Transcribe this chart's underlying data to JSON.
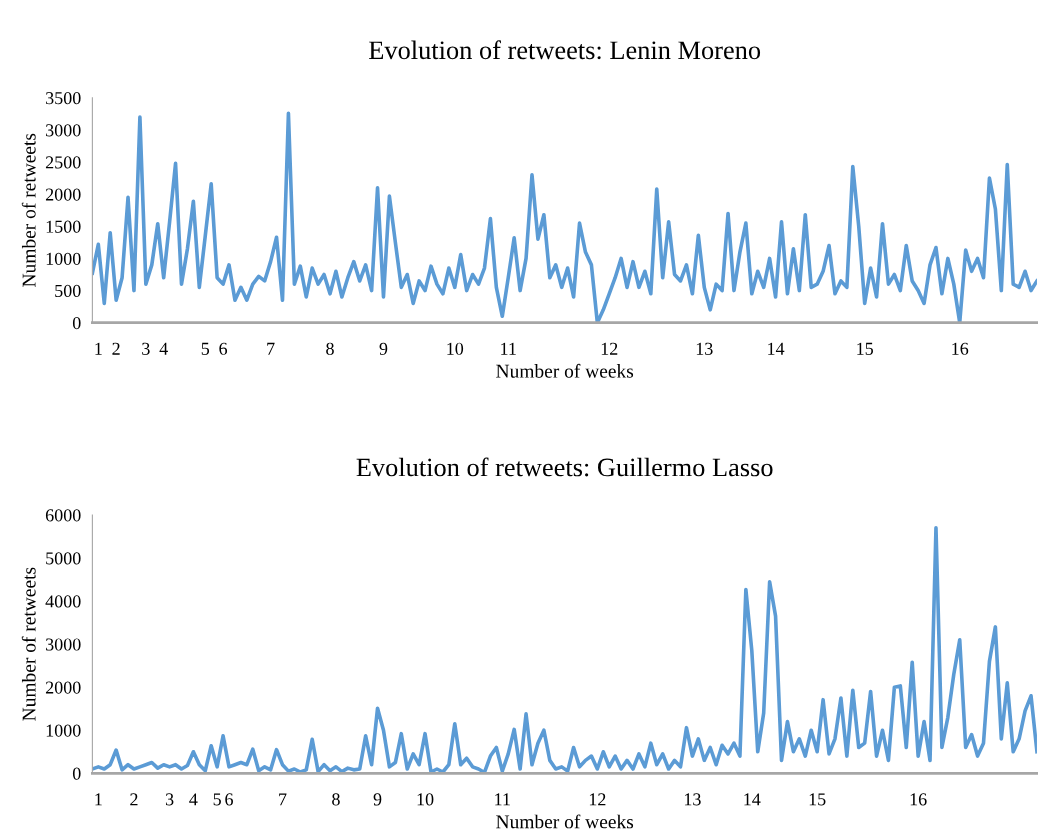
{
  "chart_data": [
    {
      "type": "line",
      "title": "Evolution of retweets: Lenin Moreno",
      "xlabel": "Number of weeks",
      "ylabel": "Number of retweets",
      "ylim": [
        0,
        3500
      ],
      "yticks": [
        0,
        500,
        1000,
        1500,
        2000,
        2500,
        3000,
        3500
      ],
      "grid": false,
      "legend": false,
      "marker": "none",
      "line_style": "solid",
      "categories": [
        null,
        "1",
        null,
        null,
        "2",
        null,
        null,
        null,
        null,
        "3",
        null,
        null,
        "4",
        null,
        null,
        null,
        null,
        null,
        null,
        "5",
        null,
        null,
        "6",
        null,
        null,
        null,
        null,
        null,
        null,
        null,
        "7",
        null,
        null,
        null,
        null,
        null,
        null,
        null,
        null,
        null,
        "8",
        null,
        null,
        null,
        null,
        null,
        null,
        null,
        null,
        "9",
        null,
        null,
        null,
        null,
        null,
        null,
        null,
        null,
        null,
        null,
        null,
        "10",
        null,
        null,
        null,
        null,
        null,
        null,
        null,
        null,
        "11",
        null,
        null,
        null,
        null,
        null,
        null,
        null,
        null,
        null,
        null,
        null,
        null,
        null,
        null,
        null,
        null,
        "12",
        null,
        null,
        null,
        null,
        null,
        null,
        null,
        null,
        null,
        null,
        null,
        null,
        null,
        null,
        null,
        "13",
        null,
        null,
        null,
        null,
        null,
        null,
        null,
        null,
        null,
        null,
        null,
        "14",
        null,
        null,
        null,
        null,
        null,
        null,
        null,
        null,
        null,
        null,
        null,
        null,
        null,
        null,
        "15",
        null,
        null,
        null,
        null,
        null,
        null,
        null,
        null,
        null,
        null,
        null,
        null,
        null,
        null,
        null,
        "16",
        null,
        null,
        null,
        null,
        null,
        null,
        null,
        null,
        null,
        null,
        null,
        null,
        null
      ],
      "series": [
        {
          "color": "#5b9bd5",
          "values": [
            770,
            1220,
            300,
            1400,
            350,
            700,
            1950,
            500,
            3200,
            600,
            900,
            1540,
            700,
            1570,
            2480,
            600,
            1150,
            1890,
            550,
            1350,
            2160,
            700,
            600,
            900,
            350,
            550,
            350,
            600,
            720,
            650,
            950,
            1330,
            350,
            3260,
            600,
            880,
            400,
            850,
            600,
            750,
            450,
            800,
            400,
            700,
            950,
            650,
            900,
            500,
            2100,
            400,
            1970,
            1250,
            550,
            750,
            300,
            650,
            500,
            880,
            600,
            450,
            850,
            550,
            1060,
            500,
            750,
            600,
            850,
            1620,
            550,
            100,
            700,
            1320,
            500,
            1000,
            2300,
            1300,
            1680,
            700,
            900,
            550,
            850,
            400,
            1550,
            1100,
            900,
            0,
            200,
            450,
            700,
            1000,
            550,
            950,
            550,
            800,
            450,
            2080,
            700,
            1570,
            750,
            650,
            900,
            450,
            1360,
            550,
            200,
            600,
            500,
            1700,
            500,
            1100,
            1550,
            450,
            800,
            550,
            1000,
            400,
            1570,
            450,
            1150,
            500,
            1680,
            550,
            600,
            800,
            1200,
            450,
            650,
            550,
            2430,
            1500,
            300,
            850,
            400,
            1540,
            600,
            750,
            500,
            1200,
            650,
            500,
            300,
            900,
            1170,
            450,
            1000,
            600,
            0,
            1130,
            800,
            1000,
            700,
            2250,
            1770,
            500,
            2460,
            600,
            550,
            800,
            500,
            650
          ]
        }
      ]
    },
    {
      "type": "line",
      "title": "Evolution of retweets: Guillermo Lasso",
      "xlabel": "Number of weeks",
      "ylabel": "Number of retweets",
      "ylim": [
        0,
        6000
      ],
      "yticks": [
        0,
        1000,
        2000,
        3000,
        4000,
        5000,
        6000
      ],
      "grid": false,
      "legend": false,
      "marker": "none",
      "line_style": "solid",
      "categories": [
        null,
        "1",
        null,
        null,
        null,
        null,
        null,
        "2",
        null,
        null,
        null,
        null,
        null,
        "3",
        null,
        null,
        null,
        "4",
        null,
        null,
        null,
        "5",
        null,
        "6",
        null,
        null,
        null,
        null,
        null,
        null,
        null,
        null,
        "7",
        null,
        null,
        null,
        null,
        null,
        null,
        null,
        null,
        "8",
        null,
        null,
        null,
        null,
        null,
        null,
        "9",
        null,
        null,
        null,
        null,
        null,
        null,
        null,
        "10",
        null,
        null,
        null,
        null,
        null,
        null,
        null,
        null,
        null,
        null,
        null,
        null,
        "11",
        null,
        null,
        null,
        null,
        null,
        null,
        null,
        null,
        null,
        null,
        null,
        null,
        null,
        null,
        null,
        "12",
        null,
        null,
        null,
        null,
        null,
        null,
        null,
        null,
        null,
        null,
        null,
        null,
        null,
        null,
        null,
        "13",
        null,
        null,
        null,
        null,
        null,
        null,
        null,
        null,
        null,
        "14",
        null,
        null,
        null,
        null,
        null,
        null,
        null,
        null,
        null,
        null,
        "15",
        null,
        null,
        null,
        null,
        null,
        null,
        null,
        null,
        null,
        null,
        null,
        null,
        null,
        null,
        null,
        null,
        "16",
        null,
        null,
        null,
        null,
        null,
        null,
        null,
        null,
        null,
        null,
        null,
        null,
        null,
        null,
        null,
        null,
        null,
        null,
        null,
        null
      ],
      "series": [
        {
          "color": "#5b9bd5",
          "values": [
            100,
            150,
            100,
            200,
            540,
            80,
            200,
            100,
            150,
            200,
            250,
            120,
            200,
            150,
            200,
            100,
            180,
            500,
            200,
            60,
            640,
            150,
            870,
            150,
            200,
            250,
            200,
            560,
            60,
            150,
            80,
            550,
            200,
            50,
            100,
            30,
            80,
            790,
            40,
            200,
            60,
            150,
            40,
            120,
            80,
            100,
            870,
            200,
            1510,
            1000,
            150,
            250,
            920,
            100,
            450,
            200,
            920,
            30,
            100,
            30,
            200,
            1150,
            200,
            350,
            150,
            100,
            20,
            400,
            600,
            50,
            450,
            1020,
            100,
            1380,
            200,
            700,
            1000,
            300,
            100,
            150,
            50,
            600,
            150,
            300,
            400,
            100,
            500,
            150,
            400,
            100,
            300,
            100,
            450,
            150,
            700,
            200,
            450,
            100,
            300,
            150,
            1060,
            400,
            800,
            300,
            600,
            200,
            650,
            450,
            700,
            400,
            4270,
            2850,
            500,
            1400,
            4450,
            3650,
            300,
            1200,
            500,
            800,
            400,
            1000,
            500,
            1710,
            450,
            800,
            1750,
            400,
            1930,
            600,
            700,
            1900,
            400,
            1000,
            300,
            2000,
            2030,
            600,
            2580,
            400,
            1200,
            300,
            5700,
            600,
            1300,
            2300,
            3100,
            600,
            900,
            400,
            700,
            2600,
            3400,
            800,
            2100,
            500,
            800,
            1450,
            1800,
            500
          ]
        }
      ]
    }
  ]
}
